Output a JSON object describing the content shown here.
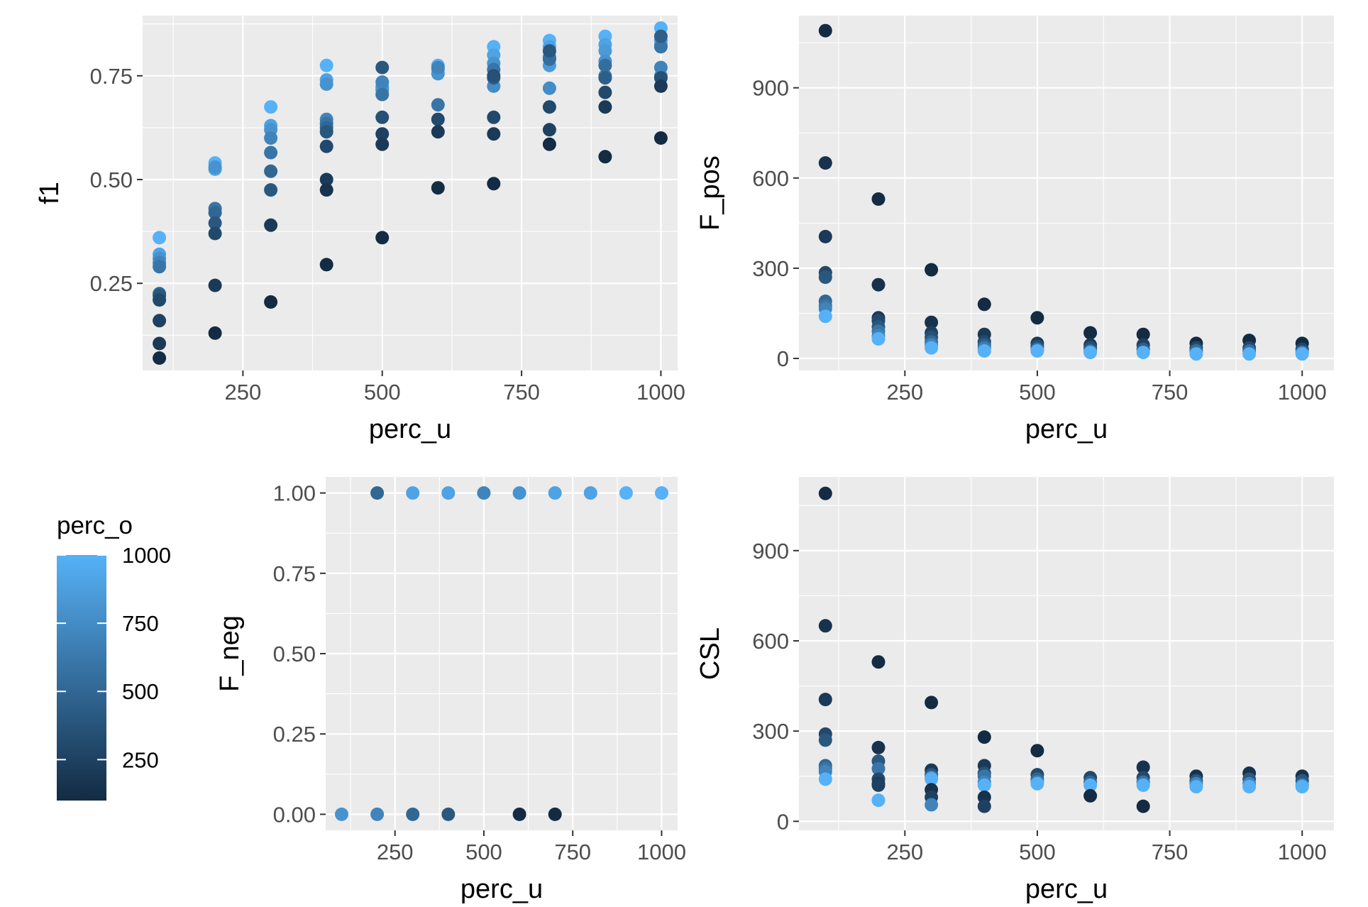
{
  "colors": {
    "low": "#132b43",
    "high": "#56b1f7",
    "panel": "#ebebeb",
    "grid": "#ffffff"
  },
  "chart_data": [
    {
      "type": "scatter",
      "id": "f1",
      "title": "",
      "xlabel": "perc_u",
      "ylabel": "f1",
      "xlim": [
        70,
        1030
      ],
      "ylim": [
        0.04,
        0.895
      ],
      "xticks": [
        250,
        500,
        750,
        1000
      ],
      "xtick_labels": [
        "250",
        "500",
        "750",
        "1000"
      ],
      "yticks": [
        0.25,
        0.5,
        0.75
      ],
      "ytick_labels": [
        "0.25",
        "0.50",
        "0.75"
      ],
      "points": [
        [
          100,
          0.36,
          1000
        ],
        [
          100,
          0.32,
          900
        ],
        [
          100,
          0.31,
          800
        ],
        [
          100,
          0.3,
          700
        ],
        [
          100,
          0.29,
          600
        ],
        [
          100,
          0.225,
          500
        ],
        [
          100,
          0.22,
          400
        ],
        [
          100,
          0.21,
          300
        ],
        [
          100,
          0.16,
          250
        ],
        [
          100,
          0.105,
          200
        ],
        [
          100,
          0.07,
          100
        ],
        [
          200,
          0.54,
          1000
        ],
        [
          200,
          0.525,
          900
        ],
        [
          200,
          0.53,
          800
        ],
        [
          200,
          0.43,
          600
        ],
        [
          200,
          0.42,
          500
        ],
        [
          200,
          0.395,
          400
        ],
        [
          200,
          0.37,
          300
        ],
        [
          200,
          0.245,
          200
        ],
        [
          200,
          0.13,
          100
        ],
        [
          300,
          0.675,
          1000
        ],
        [
          300,
          0.63,
          900
        ],
        [
          300,
          0.62,
          800
        ],
        [
          300,
          0.6,
          700
        ],
        [
          300,
          0.565,
          600
        ],
        [
          300,
          0.52,
          500
        ],
        [
          300,
          0.475,
          400
        ],
        [
          300,
          0.39,
          200
        ],
        [
          300,
          0.205,
          100
        ],
        [
          400,
          0.775,
          1000
        ],
        [
          400,
          0.74,
          900
        ],
        [
          400,
          0.73,
          800
        ],
        [
          400,
          0.645,
          700
        ],
        [
          400,
          0.635,
          600
        ],
        [
          400,
          0.625,
          500
        ],
        [
          400,
          0.615,
          400
        ],
        [
          400,
          0.58,
          300
        ],
        [
          400,
          0.5,
          200
        ],
        [
          400,
          0.475,
          150
        ],
        [
          400,
          0.295,
          100
        ],
        [
          500,
          0.725,
          1000
        ],
        [
          500,
          0.715,
          900
        ],
        [
          500,
          0.72,
          800
        ],
        [
          500,
          0.735,
          700
        ],
        [
          500,
          0.705,
          600
        ],
        [
          500,
          0.77,
          400
        ],
        [
          500,
          0.65,
          350
        ],
        [
          500,
          0.61,
          250
        ],
        [
          500,
          0.585,
          200
        ],
        [
          500,
          0.36,
          100
        ],
        [
          600,
          0.775,
          1000
        ],
        [
          600,
          0.765,
          900
        ],
        [
          600,
          0.755,
          800
        ],
        [
          600,
          0.77,
          700
        ],
        [
          600,
          0.68,
          600
        ],
        [
          600,
          0.645,
          300
        ],
        [
          600,
          0.615,
          200
        ],
        [
          600,
          0.48,
          100
        ],
        [
          700,
          0.82,
          1000
        ],
        [
          700,
          0.8,
          900
        ],
        [
          700,
          0.78,
          800
        ],
        [
          700,
          0.725,
          750
        ],
        [
          700,
          0.765,
          600
        ],
        [
          700,
          0.745,
          450
        ],
        [
          700,
          0.75,
          350
        ],
        [
          700,
          0.65,
          300
        ],
        [
          700,
          0.61,
          200
        ],
        [
          700,
          0.49,
          100
        ],
        [
          800,
          0.835,
          1000
        ],
        [
          800,
          0.82,
          900
        ],
        [
          800,
          0.775,
          850
        ],
        [
          800,
          0.72,
          750
        ],
        [
          800,
          0.795,
          650
        ],
        [
          800,
          0.79,
          550
        ],
        [
          800,
          0.81,
          400
        ],
        [
          800,
          0.675,
          300
        ],
        [
          800,
          0.62,
          250
        ],
        [
          800,
          0.585,
          100
        ],
        [
          900,
          0.845,
          1000
        ],
        [
          900,
          0.825,
          900
        ],
        [
          900,
          0.81,
          850
        ],
        [
          900,
          0.785,
          800
        ],
        [
          900,
          0.75,
          700
        ],
        [
          900,
          0.775,
          550
        ],
        [
          900,
          0.745,
          450
        ],
        [
          900,
          0.71,
          300
        ],
        [
          900,
          0.675,
          200
        ],
        [
          900,
          0.555,
          100
        ],
        [
          1000,
          0.865,
          1000
        ],
        [
          1000,
          0.825,
          900
        ],
        [
          1000,
          0.835,
          850
        ],
        [
          1000,
          0.75,
          800
        ],
        [
          1000,
          0.77,
          700
        ],
        [
          1000,
          0.82,
          600
        ],
        [
          1000,
          0.845,
          450
        ],
        [
          1000,
          0.745,
          350
        ],
        [
          1000,
          0.725,
          200
        ],
        [
          1000,
          0.6,
          100
        ]
      ]
    },
    {
      "type": "scatter",
      "id": "F_pos",
      "title": "",
      "xlabel": "perc_u",
      "ylabel": "F_pos",
      "xlim": [
        50,
        1060
      ],
      "ylim": [
        -40,
        1140
      ],
      "xticks": [
        250,
        500,
        750,
        1000
      ],
      "xtick_labels": [
        "250",
        "500",
        "750",
        "1000"
      ],
      "yticks": [
        0,
        300,
        600,
        900
      ],
      "ytick_labels": [
        "0",
        "300",
        "600",
        "900"
      ],
      "points": [
        [
          100,
          1090,
          100
        ],
        [
          100,
          650,
          150
        ],
        [
          100,
          405,
          200
        ],
        [
          100,
          285,
          300
        ],
        [
          100,
          270,
          400
        ],
        [
          100,
          190,
          500
        ],
        [
          100,
          175,
          600
        ],
        [
          100,
          165,
          700
        ],
        [
          100,
          140,
          1000
        ],
        [
          200,
          530,
          100
        ],
        [
          200,
          245,
          150
        ],
        [
          200,
          135,
          200
        ],
        [
          200,
          125,
          300
        ],
        [
          200,
          105,
          400
        ],
        [
          200,
          90,
          600
        ],
        [
          200,
          75,
          700
        ],
        [
          200,
          65,
          1000
        ],
        [
          300,
          295,
          100
        ],
        [
          300,
          120,
          150
        ],
        [
          300,
          85,
          250
        ],
        [
          300,
          70,
          350
        ],
        [
          300,
          55,
          500
        ],
        [
          300,
          45,
          700
        ],
        [
          300,
          35,
          1000
        ],
        [
          400,
          180,
          100
        ],
        [
          400,
          80,
          200
        ],
        [
          400,
          55,
          300
        ],
        [
          400,
          45,
          450
        ],
        [
          400,
          35,
          650
        ],
        [
          400,
          25,
          1000
        ],
        [
          500,
          135,
          100
        ],
        [
          500,
          50,
          200
        ],
        [
          500,
          40,
          350
        ],
        [
          500,
          30,
          600
        ],
        [
          500,
          25,
          1000
        ],
        [
          600,
          85,
          100
        ],
        [
          600,
          45,
          200
        ],
        [
          600,
          35,
          350
        ],
        [
          600,
          25,
          550
        ],
        [
          600,
          20,
          1000
        ],
        [
          700,
          80,
          100
        ],
        [
          700,
          45,
          250
        ],
        [
          700,
          30,
          450
        ],
        [
          700,
          20,
          1000
        ],
        [
          800,
          50,
          100
        ],
        [
          800,
          35,
          300
        ],
        [
          800,
          25,
          550
        ],
        [
          800,
          15,
          1000
        ],
        [
          900,
          60,
          100
        ],
        [
          900,
          35,
          300
        ],
        [
          900,
          25,
          550
        ],
        [
          900,
          15,
          1000
        ],
        [
          1000,
          50,
          100
        ],
        [
          1000,
          30,
          300
        ],
        [
          1000,
          20,
          650
        ],
        [
          1000,
          15,
          1000
        ]
      ]
    },
    {
      "type": "scatter",
      "id": "F_neg",
      "title": "",
      "xlabel": "perc_u",
      "ylabel": "F_neg",
      "xlim": [
        55,
        1045
      ],
      "ylim": [
        -0.05,
        1.05
      ],
      "xticks": [
        250,
        500,
        750,
        1000
      ],
      "xtick_labels": [
        "250",
        "500",
        "750",
        "1000"
      ],
      "yticks": [
        0,
        0.25,
        0.5,
        0.75,
        1.0
      ],
      "ytick_labels": [
        "0.00",
        "0.25",
        "0.50",
        "0.75",
        "1.00"
      ],
      "points": [
        [
          200,
          1.0,
          500
        ],
        [
          300,
          1.0,
          900
        ],
        [
          400,
          1.0,
          900
        ],
        [
          500,
          1.0,
          700
        ],
        [
          600,
          1.0,
          800
        ],
        [
          700,
          1.0,
          900
        ],
        [
          800,
          1.0,
          900
        ],
        [
          900,
          1.0,
          1000
        ],
        [
          1000,
          1.0,
          1000
        ],
        [
          100,
          0.0,
          800
        ],
        [
          200,
          0.0,
          700
        ],
        [
          300,
          0.0,
          500
        ],
        [
          400,
          0.0,
          400
        ],
        [
          600,
          0.0,
          100
        ],
        [
          700,
          0.0,
          100
        ]
      ]
    },
    {
      "type": "scatter",
      "id": "CSL",
      "title": "",
      "xlabel": "perc_u",
      "ylabel": "CSL",
      "xlim": [
        50,
        1060
      ],
      "ylim": [
        -30,
        1145
      ],
      "xticks": [
        250,
        500,
        750,
        1000
      ],
      "xtick_labels": [
        "250",
        "500",
        "750",
        "1000"
      ],
      "yticks": [
        0,
        300,
        600,
        900
      ],
      "ytick_labels": [
        "0",
        "300",
        "600",
        "900"
      ],
      "points": [
        [
          100,
          1090,
          100
        ],
        [
          100,
          650,
          150
        ],
        [
          100,
          405,
          200
        ],
        [
          100,
          290,
          300
        ],
        [
          100,
          270,
          400
        ],
        [
          100,
          185,
          500
        ],
        [
          100,
          175,
          600
        ],
        [
          100,
          165,
          700
        ],
        [
          100,
          140,
          1000
        ],
        [
          200,
          530,
          100
        ],
        [
          200,
          245,
          150
        ],
        [
          200,
          200,
          400
        ],
        [
          200,
          175,
          600
        ],
        [
          200,
          140,
          300
        ],
        [
          200,
          125,
          200
        ],
        [
          200,
          120,
          250
        ],
        [
          200,
          70,
          1000
        ],
        [
          300,
          395,
          100
        ],
        [
          300,
          170,
          200
        ],
        [
          300,
          155,
          400
        ],
        [
          300,
          145,
          800
        ],
        [
          300,
          140,
          1000
        ],
        [
          300,
          105,
          150
        ],
        [
          300,
          80,
          250
        ],
        [
          300,
          55,
          700
        ],
        [
          400,
          280,
          100
        ],
        [
          400,
          185,
          200
        ],
        [
          400,
          160,
          350
        ],
        [
          400,
          150,
          600
        ],
        [
          400,
          130,
          700
        ],
        [
          400,
          120,
          1000
        ],
        [
          400,
          80,
          150
        ],
        [
          400,
          50,
          250
        ],
        [
          500,
          235,
          100
        ],
        [
          500,
          155,
          300
        ],
        [
          500,
          140,
          500
        ],
        [
          500,
          130,
          700
        ],
        [
          500,
          125,
          1000
        ],
        [
          600,
          145,
          300
        ],
        [
          600,
          130,
          500
        ],
        [
          600,
          120,
          1000
        ],
        [
          600,
          85,
          100
        ],
        [
          700,
          180,
          150
        ],
        [
          700,
          145,
          300
        ],
        [
          700,
          130,
          600
        ],
        [
          700,
          120,
          1000
        ],
        [
          700,
          50,
          100
        ],
        [
          800,
          150,
          150
        ],
        [
          800,
          135,
          400
        ],
        [
          800,
          125,
          700
        ],
        [
          800,
          115,
          1000
        ],
        [
          900,
          160,
          150
        ],
        [
          900,
          140,
          400
        ],
        [
          900,
          125,
          700
        ],
        [
          900,
          115,
          1000
        ],
        [
          1000,
          150,
          150
        ],
        [
          1000,
          135,
          400
        ],
        [
          1000,
          120,
          700
        ],
        [
          1000,
          115,
          1000
        ]
      ]
    }
  ],
  "legend": {
    "title": "perc_o",
    "min": 100,
    "max": 1000,
    "breaks": [
      250,
      500,
      750,
      1000
    ],
    "labels": [
      "250",
      "500",
      "750",
      "1000"
    ]
  }
}
